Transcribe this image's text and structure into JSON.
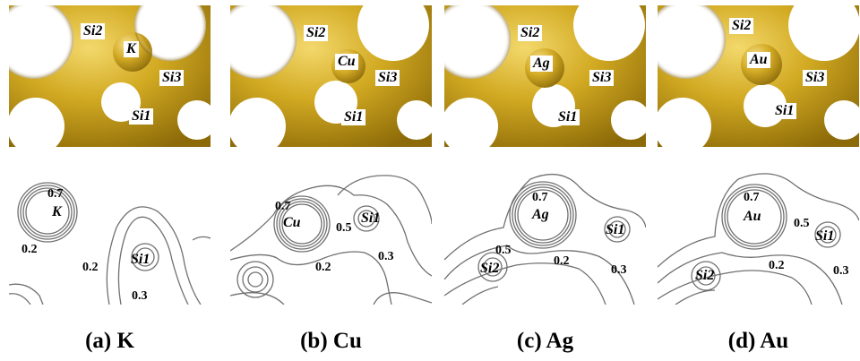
{
  "panels": [
    {
      "caption": "(a) K",
      "iso_labels": {
        "main": "K",
        "si1": "Si1",
        "si2": "Si2",
        "si3": "Si3"
      },
      "contour_labels": {
        "main": "K",
        "si1": "Si1",
        "l07": "0.7",
        "l02a": "0.2",
        "l02b": "0.2",
        "l03": "0.3"
      }
    },
    {
      "caption": "(b) Cu",
      "iso_labels": {
        "main": "Cu",
        "si1": "Si1",
        "si2": "Si2",
        "si3": "Si3"
      },
      "contour_labels": {
        "main": "Cu",
        "si1": "Si1",
        "l07": "0.7",
        "l05": "0.5",
        "l02": "0.2",
        "l03": "0.3"
      }
    },
    {
      "caption": "(c) Ag",
      "iso_labels": {
        "main": "Ag",
        "si1": "Si1",
        "si2": "Si2",
        "si3": "Si3"
      },
      "contour_labels": {
        "main": "Ag",
        "si1": "Si1",
        "si2": "Si2",
        "l07": "0.7",
        "l05": "0.5",
        "l02": "0.2",
        "l03": "0.3"
      }
    },
    {
      "caption": "(d) Au",
      "iso_labels": {
        "main": "Au",
        "si1": "Si1",
        "si2": "Si2",
        "si3": "Si3"
      },
      "contour_labels": {
        "main": "Au",
        "si1": "Si1",
        "si2": "Si2",
        "l07": "0.7",
        "l05": "0.5",
        "l02": "0.2",
        "l03": "0.3"
      }
    }
  ],
  "colors": {
    "gold": "#c9a218",
    "gold_dark": "#8a6a08",
    "gold_light": "#f0d36a",
    "contour": "#707070"
  }
}
